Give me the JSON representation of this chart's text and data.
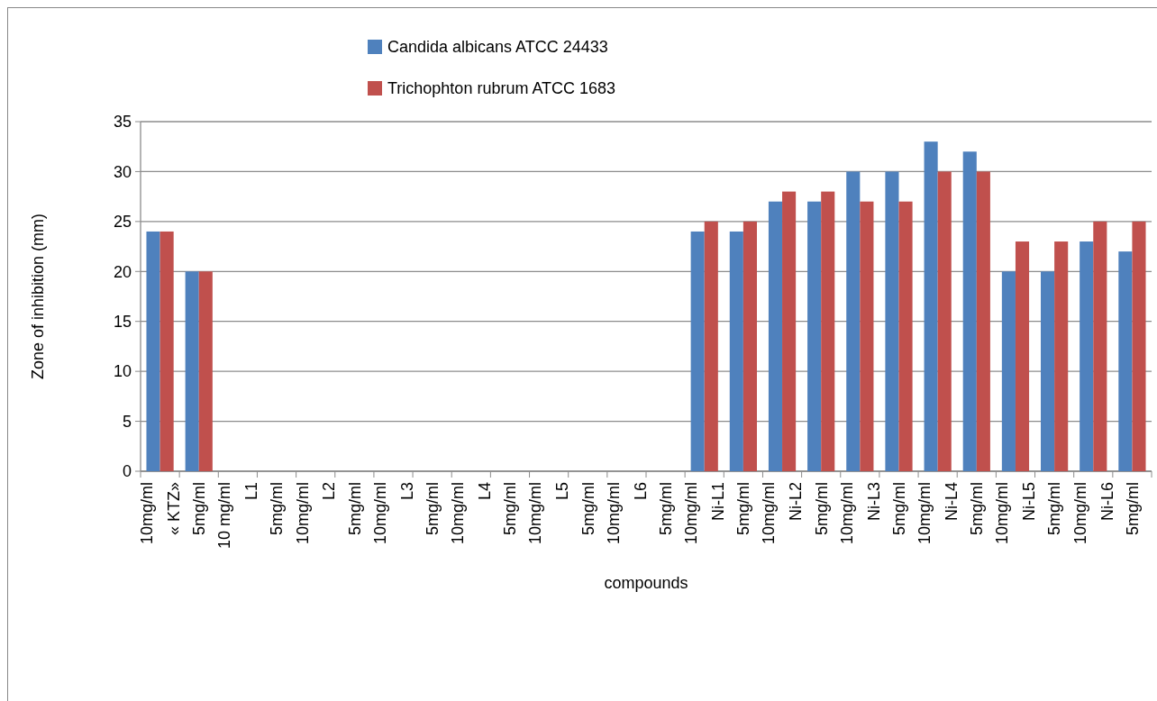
{
  "chart_data": {
    "type": "bar",
    "xlabel": "compounds",
    "ylabel": "Zone of inhibition (mm)",
    "categories": [
      "10mg/ml\n« KTZ»",
      "5mg/ml",
      "10 mg/ml\nL1",
      "5mg/ml",
      "10mg/ml\nL2",
      "5mg/ml",
      "10mg/ml\nL3",
      "5mg/ml",
      "10mg/ml\nL4",
      "5mg/ml",
      "10mg/ml\nL5",
      "5mg/ml",
      "10mg/ml\nL6",
      "5mg/ml",
      "10mg/ml\nNi-L1",
      "5mg/ml",
      "10mg/ml\nNi-L2",
      "5mg/ml",
      "10mg/ml\nNi-L3",
      "5mg/ml",
      "10mg/ml\nNi-L4",
      "5mg/ml",
      "10mg/ml\nNi-L5",
      "5mg/ml",
      "10mg/ml\nNi-L6",
      "5mg/ml"
    ],
    "series": [
      {
        "name": "Candida albicans ATCC 24433",
        "color": "#4f81bd",
        "values": [
          24,
          20,
          0,
          0,
          0,
          0,
          0,
          0,
          0,
          0,
          0,
          0,
          0,
          0,
          24,
          24,
          27,
          27,
          30,
          30,
          33,
          32,
          20,
          20,
          23,
          22
        ]
      },
      {
        "name": "Trichophton rubrum ATCC 1683",
        "color": "#c0504d",
        "values": [
          24,
          20,
          0,
          0,
          0,
          0,
          0,
          0,
          0,
          0,
          0,
          0,
          0,
          0,
          25,
          25,
          28,
          28,
          27,
          27,
          30,
          30,
          23,
          23,
          25,
          25
        ]
      }
    ],
    "ylim": [
      0,
      35
    ],
    "yticks": [
      0,
      5,
      10,
      15,
      20,
      25,
      30,
      35
    ],
    "grid": "y",
    "legend": "top"
  }
}
